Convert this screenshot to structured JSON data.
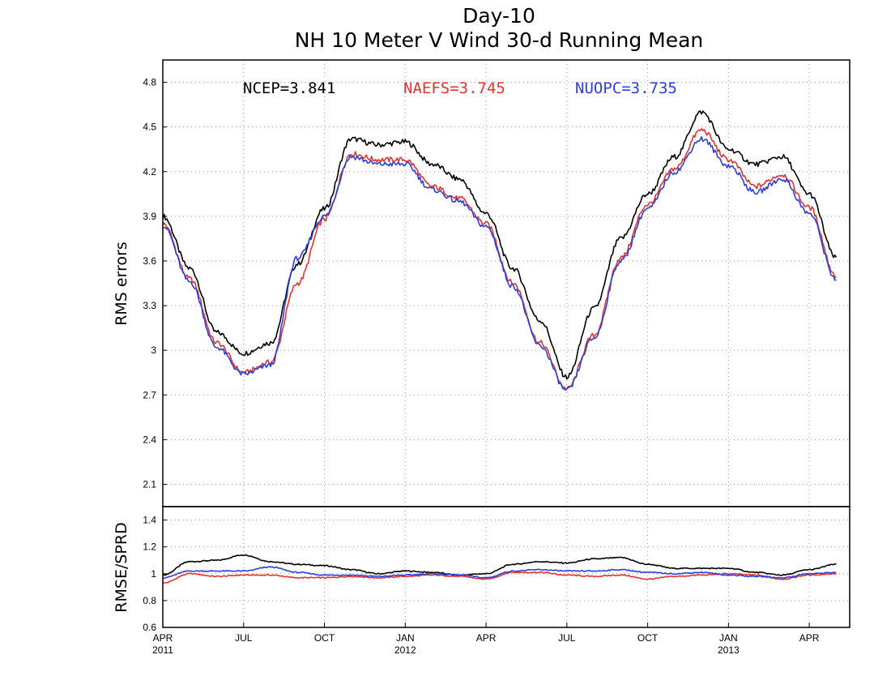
{
  "titles": [
    "Day-10",
    "NH 10 Meter V Wind 30-d Running Mean"
  ],
  "colors": {
    "NCEP": "#000000",
    "NAEFS": "#e8322e",
    "NUOPC": "#2b3fe0"
  },
  "legend": [
    {
      "key": "NCEP",
      "label": "NCEP=3.841"
    },
    {
      "key": "NAEFS",
      "label": "NAEFS=3.745"
    },
    {
      "key": "NUOPC",
      "label": "NUOPC=3.735"
    }
  ],
  "x_axis": {
    "ticks": [
      {
        "label": "APR",
        "sub": "2011",
        "month_index": 0
      },
      {
        "label": "JUL",
        "sub": "",
        "month_index": 3
      },
      {
        "label": "OCT",
        "sub": "",
        "month_index": 6
      },
      {
        "label": "JAN",
        "sub": "2012",
        "month_index": 9
      },
      {
        "label": "APR",
        "sub": "",
        "month_index": 12
      },
      {
        "label": "JUL",
        "sub": "",
        "month_index": 15
      },
      {
        "label": "OCT",
        "sub": "",
        "month_index": 18
      },
      {
        "label": "JAN",
        "sub": "2013",
        "month_index": 21
      },
      {
        "label": "APR",
        "sub": "",
        "month_index": 24
      }
    ],
    "range_months": [
      0,
      25.5
    ]
  },
  "chart_data": [
    {
      "type": "line",
      "title": "NH 10 Meter V Wind 30-d Running Mean",
      "subtitle": "Day-10",
      "xlabel": "",
      "ylabel": "RMS errors",
      "ylim": [
        1.95,
        4.95
      ],
      "yticks": [
        2.1,
        2.4,
        2.7,
        3.0,
        3.3,
        3.6,
        3.9,
        4.2,
        4.5,
        4.8
      ],
      "ytick_labels": [
        "2.1",
        "2.4",
        "2.7",
        "3",
        "3.3",
        "3.6",
        "3.9",
        "4.2",
        "4.5",
        "4.8"
      ],
      "grid": true,
      "legend_position": "top",
      "x": [
        "2011-04",
        "2011-05",
        "2011-06",
        "2011-07",
        "2011-08",
        "2011-09",
        "2011-10",
        "2011-11",
        "2011-12",
        "2012-01",
        "2012-02",
        "2012-03",
        "2012-04",
        "2012-05",
        "2012-06",
        "2012-07",
        "2012-08",
        "2012-09",
        "2012-10",
        "2012-11",
        "2012-12",
        "2013-01",
        "2013-02",
        "2013-03",
        "2013-04",
        "2013-05"
      ],
      "series": [
        {
          "name": "NCEP",
          "values": [
            3.9,
            3.55,
            3.12,
            2.98,
            3.05,
            3.58,
            3.95,
            4.42,
            4.38,
            4.4,
            4.25,
            4.15,
            3.92,
            3.55,
            3.2,
            2.82,
            3.28,
            3.75,
            4.05,
            4.3,
            4.6,
            4.35,
            4.25,
            4.3,
            4.05,
            3.62
          ]
        },
        {
          "name": "NAEFS",
          "values": [
            3.85,
            3.48,
            3.05,
            2.85,
            2.92,
            3.45,
            3.88,
            4.32,
            4.28,
            4.28,
            4.1,
            4.02,
            3.85,
            3.45,
            3.05,
            2.74,
            3.1,
            3.62,
            3.98,
            4.22,
            4.48,
            4.28,
            4.1,
            4.18,
            3.96,
            3.5
          ]
        },
        {
          "name": "NUOPC",
          "values": [
            3.84,
            3.46,
            3.02,
            2.84,
            2.9,
            3.62,
            3.9,
            4.3,
            4.25,
            4.25,
            4.08,
            4.0,
            3.83,
            3.43,
            3.03,
            2.73,
            3.08,
            3.6,
            3.95,
            4.2,
            4.42,
            4.24,
            4.06,
            4.15,
            3.92,
            3.48
          ]
        }
      ]
    },
    {
      "type": "line",
      "title": "",
      "xlabel": "",
      "ylabel": "RMSE/SPRD",
      "ylim": [
        0.6,
        1.5
      ],
      "yticks": [
        0.6,
        0.8,
        1.0,
        1.2,
        1.4
      ],
      "ytick_labels": [
        "0.6",
        "0.8",
        "1",
        "1.2",
        "1.4"
      ],
      "grid": true,
      "x": [
        "2011-04",
        "2011-05",
        "2011-06",
        "2011-07",
        "2011-08",
        "2011-09",
        "2011-10",
        "2011-11",
        "2011-12",
        "2012-01",
        "2012-02",
        "2012-03",
        "2012-04",
        "2012-05",
        "2012-06",
        "2012-07",
        "2012-08",
        "2012-09",
        "2012-10",
        "2012-11",
        "2012-12",
        "2013-01",
        "2013-02",
        "2013-03",
        "2013-04",
        "2013-05"
      ],
      "series": [
        {
          "name": "NCEP",
          "values": [
            0.99,
            1.09,
            1.1,
            1.14,
            1.09,
            1.07,
            1.06,
            1.03,
            1.0,
            1.02,
            1.01,
            0.99,
            1.0,
            1.07,
            1.09,
            1.08,
            1.11,
            1.12,
            1.07,
            1.04,
            1.04,
            1.04,
            1.01,
            0.99,
            1.03,
            1.07
          ]
        },
        {
          "name": "NAEFS",
          "values": [
            0.93,
            1.0,
            0.98,
            0.99,
            0.99,
            0.97,
            0.97,
            0.98,
            0.97,
            0.98,
            0.99,
            0.98,
            0.96,
            1.01,
            1.01,
            0.99,
            0.98,
            0.99,
            0.96,
            0.98,
            0.99,
            1.0,
            0.99,
            0.96,
            0.99,
            1.0
          ]
        },
        {
          "name": "NUOPC",
          "values": [
            0.97,
            1.02,
            1.02,
            1.02,
            1.05,
            1.01,
            0.99,
            0.99,
            0.98,
            0.99,
            1.0,
            0.99,
            0.97,
            1.02,
            1.03,
            1.02,
            1.02,
            1.03,
            1.01,
            1.0,
            1.01,
            0.99,
            0.98,
            0.97,
            1.0,
            1.01
          ]
        }
      ]
    }
  ]
}
